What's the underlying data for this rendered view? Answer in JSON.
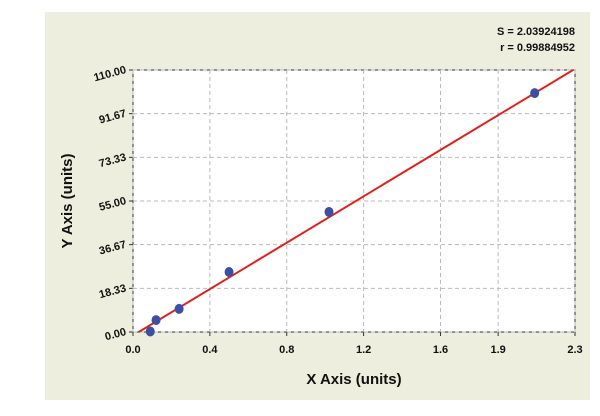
{
  "chart_data": {
    "type": "scatter",
    "x_label": "X Axis (units)",
    "y_label": "Y Axis (units)",
    "annotations": [
      "S = 2.03924198",
      "r = 0.99884952"
    ],
    "series": [
      {
        "color": "#3b4fa3",
        "x": [
          0.09,
          0.12,
          0.24,
          0.5,
          1.02,
          2.09
        ],
        "values": [
          0.2,
          5,
          9.7,
          25.2,
          50.4,
          100.3
        ]
      }
    ],
    "fit_line": {
      "color": "#e0201b",
      "x": [
        0.03,
        2.3
      ],
      "values": [
        0,
        110.5
      ]
    },
    "xlim": [
      0,
      2.3
    ],
    "ylim": [
      0,
      110
    ],
    "xticks": [
      {
        "value": 0,
        "label": "0.0"
      },
      0.4,
      0.8,
      1.2,
      1.6,
      1.9,
      2.3
    ],
    "yticks": [
      {
        "value": 0,
        "label": "0.00"
      },
      18.33,
      36.67,
      {
        "value": 55,
        "label": "55.00"
      },
      73.33,
      91.67,
      {
        "value": 110,
        "label": "110.00"
      }
    ],
    "grid": true
  }
}
